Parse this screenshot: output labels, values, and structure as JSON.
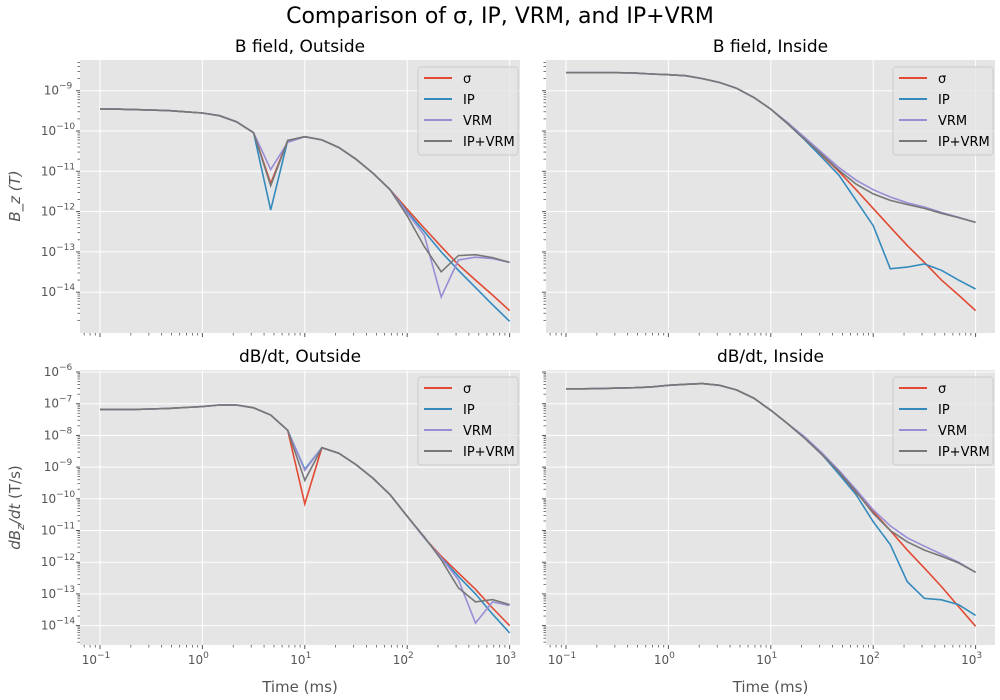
{
  "title": "Comparison of σ, IP, VRM, and IP+VRM",
  "chart_data": [
    {
      "type": "line",
      "title": "B field, Outside",
      "xlabel": "",
      "ylabel": "B_z (T)",
      "xscale": "log",
      "yscale": "log",
      "xlim": [
        0.064,
        1560
      ],
      "ylim": [
        1e-15,
        5.7e-09
      ],
      "grid": true,
      "legend": "top-right",
      "xticks": [
        0.1,
        1,
        10,
        100,
        1000
      ],
      "show_xticklabels": false,
      "yticks": [
        1e-09,
        1e-10,
        1e-11,
        1e-12,
        1e-13,
        1e-14
      ],
      "show_yticklabels": true,
      "x": [
        0.1,
        0.147,
        0.215,
        0.316,
        0.464,
        0.681,
        1,
        1.47,
        2.15,
        3.16,
        4.64,
        6.81,
        10,
        14.7,
        21.5,
        31.6,
        46.4,
        68.1,
        100,
        147,
        215,
        316,
        464,
        681,
        1000
      ],
      "series": [
        {
          "name": "σ",
          "color": "#E24A33",
          "values": [
            3.5e-10,
            3.5e-10,
            3.4e-10,
            3.3e-10,
            3.2e-10,
            3e-10,
            2.8e-10,
            2.4e-10,
            1.7e-10,
            9.1e-11,
            5e-12,
            5.8e-11,
            7.2e-11,
            6e-11,
            3.9e-11,
            2e-11,
            8.9e-12,
            3.5e-12,
            1.15e-12,
            3.9e-13,
            1.35e-13,
            4.8e-14,
            2e-14,
            8.5e-15,
            3.5e-15
          ]
        },
        {
          "name": "IP",
          "color": "#348ABD",
          "values": [
            3.5e-10,
            3.5e-10,
            3.4e-10,
            3.3e-10,
            3.2e-10,
            3e-10,
            2.8e-10,
            2.4e-10,
            1.7e-10,
            9.1e-11,
            1.1e-12,
            5.8e-11,
            7.2e-11,
            6e-11,
            3.9e-11,
            2e-11,
            8.9e-12,
            3.5e-12,
            1e-12,
            3.2e-13,
            1e-13,
            3.5e-14,
            1.3e-14,
            4.9e-15,
            1.9e-15
          ]
        },
        {
          "name": "VRM",
          "color": "#988ED5",
          "values": [
            3.5e-10,
            3.5e-10,
            3.4e-10,
            3.3e-10,
            3.2e-10,
            3e-10,
            2.8e-10,
            2.4e-10,
            1.7e-10,
            9.1e-11,
            1.1e-11,
            5.2e-11,
            7.2e-11,
            6e-11,
            3.9e-11,
            2e-11,
            8.9e-12,
            3.5e-12,
            9.3e-13,
            2.6e-13,
            7.6e-15,
            6.3e-14,
            7.4e-14,
            6.8e-14,
            5.5e-14
          ]
        },
        {
          "name": "IP+VRM",
          "color": "#777777",
          "values": [
            3.5e-10,
            3.5e-10,
            3.4e-10,
            3.3e-10,
            3.2e-10,
            3e-10,
            2.8e-10,
            2.4e-10,
            1.7e-10,
            9.1e-11,
            4.4e-12,
            5.8e-11,
            7.2e-11,
            6e-11,
            3.9e-11,
            2e-11,
            8.9e-12,
            3.5e-12,
            7.8e-13,
            1.35e-13,
            3.2e-14,
            8.1e-14,
            8.5e-14,
            7.2e-14,
            5.5e-14
          ]
        }
      ]
    },
    {
      "type": "line",
      "title": "B field, Inside",
      "xlabel": "",
      "ylabel": "",
      "xscale": "log",
      "yscale": "log",
      "xlim": [
        0.064,
        1560
      ],
      "ylim": [
        1e-15,
        5.7e-09
      ],
      "grid": true,
      "legend": "top-right",
      "xticks": [
        0.1,
        1,
        10,
        100,
        1000
      ],
      "show_xticklabels": false,
      "yticks": [
        1e-09,
        1e-10,
        1e-11,
        1e-12,
        1e-13,
        1e-14
      ],
      "show_yticklabels": false,
      "x": [
        0.1,
        0.147,
        0.215,
        0.316,
        0.464,
        0.681,
        1,
        1.47,
        2.15,
        3.16,
        4.64,
        6.81,
        10,
        14.7,
        21.5,
        31.6,
        46.4,
        68.1,
        100,
        147,
        215,
        316,
        464,
        681,
        1000
      ],
      "series": [
        {
          "name": "σ",
          "color": "#E24A33",
          "values": [
            2.8e-09,
            2.8e-09,
            2.8e-09,
            2.8e-09,
            2.75e-09,
            2.6e-09,
            2.5e-09,
            2.35e-09,
            2e-09,
            1.6e-09,
            1.15e-09,
            6.8e-10,
            3.5e-10,
            1.5e-10,
            6.2e-11,
            2.5e-11,
            9.8e-12,
            3.5e-12,
            1.2e-12,
            4.1e-13,
            1.45e-13,
            5.5e-14,
            2e-14,
            8.5e-15,
            3.5e-15
          ]
        },
        {
          "name": "IP",
          "color": "#348ABD",
          "values": [
            2.8e-09,
            2.8e-09,
            2.8e-09,
            2.8e-09,
            2.75e-09,
            2.6e-09,
            2.5e-09,
            2.35e-09,
            2e-09,
            1.6e-09,
            1.15e-09,
            6.8e-10,
            3.5e-10,
            1.5e-10,
            6e-11,
            2.2e-11,
            7.9e-12,
            1.9e-12,
            4.5e-13,
            3.8e-14,
            4.2e-14,
            5e-14,
            3.5e-14,
            2e-14,
            1.2e-14
          ]
        },
        {
          "name": "VRM",
          "color": "#988ED5",
          "values": [
            2.8e-09,
            2.8e-09,
            2.8e-09,
            2.8e-09,
            2.75e-09,
            2.6e-09,
            2.5e-09,
            2.35e-09,
            2e-09,
            1.6e-09,
            1.15e-09,
            6.8e-10,
            3.5e-10,
            1.6e-10,
            6.9e-11,
            2.9e-11,
            1.23e-11,
            6e-12,
            3.5e-12,
            2.3e-12,
            1.65e-12,
            1.3e-12,
            9.5e-13,
            7.2e-13,
            5.4e-13
          ]
        },
        {
          "name": "IP+VRM",
          "color": "#777777",
          "values": [
            2.8e-09,
            2.8e-09,
            2.8e-09,
            2.8e-09,
            2.75e-09,
            2.6e-09,
            2.5e-09,
            2.35e-09,
            2e-09,
            1.6e-09,
            1.15e-09,
            6.8e-10,
            3.5e-10,
            1.5e-10,
            6.2e-11,
            2.6e-11,
            1.05e-11,
            4.8e-12,
            2.75e-12,
            1.9e-12,
            1.5e-12,
            1.2e-12,
            9.1e-13,
            7.1e-13,
            5.4e-13
          ]
        }
      ]
    },
    {
      "type": "line",
      "title": "dB/dt, Outside",
      "xlabel": "Time (ms)",
      "ylabel": "dB_z/dt (T/s)",
      "xscale": "log",
      "yscale": "log",
      "xlim": [
        0.064,
        1560
      ],
      "ylim": [
        2.3e-15,
        1.15e-06
      ],
      "grid": true,
      "legend": "top-right",
      "xticks": [
        0.1,
        1,
        10,
        100,
        1000
      ],
      "show_xticklabels": true,
      "yticks": [
        1e-06,
        1e-07,
        1e-08,
        1e-09,
        1e-10,
        1e-11,
        1e-12,
        1e-13,
        1e-14
      ],
      "show_yticklabels": true,
      "x": [
        0.1,
        0.147,
        0.215,
        0.316,
        0.464,
        0.681,
        1,
        1.47,
        2.15,
        3.16,
        4.64,
        6.81,
        10,
        14.7,
        21.5,
        31.6,
        46.4,
        68.1,
        100,
        147,
        215,
        316,
        464,
        681,
        1000
      ],
      "series": [
        {
          "name": "σ",
          "color": "#E24A33",
          "values": [
            6.6e-08,
            6.6e-08,
            6.6e-08,
            6.8e-08,
            7.1e-08,
            7.6e-08,
            8.1e-08,
            9.1e-08,
            9.1e-08,
            7.4e-08,
            4.4e-08,
            1.45e-08,
            6.9e-11,
            4.1e-09,
            2.75e-09,
            1.2e-09,
            4.4e-10,
            1.35e-10,
            2.8e-11,
            5.9e-12,
            1.55e-12,
            4.6e-13,
            1.4e-13,
            3.6e-14,
            1e-14
          ]
        },
        {
          "name": "IP",
          "color": "#348ABD",
          "values": [
            6.6e-08,
            6.6e-08,
            6.6e-08,
            6.8e-08,
            7.1e-08,
            7.6e-08,
            8.1e-08,
            9.1e-08,
            9.1e-08,
            7.4e-08,
            4.4e-08,
            1.45e-08,
            8.5e-10,
            4.1e-09,
            2.75e-09,
            1.2e-09,
            4.4e-10,
            1.35e-10,
            2.8e-11,
            5.9e-12,
            1.4e-12,
            3.6e-13,
            1e-13,
            2.3e-14,
            5.9e-15
          ]
        },
        {
          "name": "VRM",
          "color": "#988ED5",
          "values": [
            6.6e-08,
            6.6e-08,
            6.6e-08,
            6.8e-08,
            7.1e-08,
            7.6e-08,
            8.1e-08,
            9.1e-08,
            9.1e-08,
            7.4e-08,
            4.4e-08,
            1.45e-08,
            7.9e-10,
            4.1e-09,
            2.75e-09,
            1.2e-09,
            4.4e-10,
            1.35e-10,
            2.8e-11,
            5.9e-12,
            1.4e-12,
            2.8e-13,
            1.2e-14,
            5.6e-14,
            4.3e-14
          ]
        },
        {
          "name": "IP+VRM",
          "color": "#777777",
          "values": [
            6.6e-08,
            6.6e-08,
            6.6e-08,
            6.8e-08,
            7.1e-08,
            7.6e-08,
            8.1e-08,
            9.1e-08,
            9.1e-08,
            7.4e-08,
            4.4e-08,
            1.45e-08,
            3.8e-10,
            4.1e-09,
            2.75e-09,
            1.2e-09,
            4.4e-10,
            1.35e-10,
            2.8e-11,
            6.3e-12,
            1.2e-12,
            1.55e-13,
            5.6e-14,
            6.6e-14,
            4.6e-14
          ]
        }
      ]
    },
    {
      "type": "line",
      "title": "dB/dt, Inside",
      "xlabel": "Time (ms)",
      "ylabel": "",
      "xscale": "log",
      "yscale": "log",
      "xlim": [
        0.064,
        1560
      ],
      "ylim": [
        2.3e-15,
        1.15e-06
      ],
      "grid": true,
      "legend": "top-right",
      "xticks": [
        0.1,
        1,
        10,
        100,
        1000
      ],
      "show_xticklabels": true,
      "yticks": [
        1e-06,
        1e-07,
        1e-08,
        1e-09,
        1e-10,
        1e-11,
        1e-12,
        1e-13,
        1e-14
      ],
      "show_yticklabels": false,
      "x": [
        0.1,
        0.147,
        0.215,
        0.316,
        0.464,
        0.681,
        1,
        1.47,
        2.15,
        3.16,
        4.64,
        6.81,
        10,
        14.7,
        21.5,
        31.6,
        46.4,
        68.1,
        100,
        147,
        215,
        316,
        464,
        681,
        1000
      ],
      "series": [
        {
          "name": "σ",
          "color": "#E24A33",
          "values": [
            2.95e-07,
            2.95e-07,
            3e-07,
            3.1e-07,
            3.2e-07,
            3.4e-07,
            3.8e-07,
            4.1e-07,
            4.3e-07,
            3.8e-07,
            2.7e-07,
            1.5e-07,
            6.2e-08,
            2.3e-08,
            8.1e-09,
            2.5e-09,
            6.6e-10,
            1.6e-10,
            4e-11,
            1e-11,
            2.45e-12,
            6.5e-13,
            1.7e-13,
            4e-14,
            9.5e-15
          ]
        },
        {
          "name": "IP",
          "color": "#348ABD",
          "values": [
            2.95e-07,
            2.95e-07,
            3e-07,
            3.1e-07,
            3.2e-07,
            3.4e-07,
            3.8e-07,
            4.1e-07,
            4.3e-07,
            3.8e-07,
            2.7e-07,
            1.5e-07,
            6.2e-08,
            2.3e-08,
            8.1e-09,
            2.5e-09,
            5.9e-10,
            1.35e-10,
            1.9e-11,
            3.6e-12,
            2.45e-13,
            7.2e-14,
            6.5e-14,
            4.6e-14,
            2.1e-14
          ]
        },
        {
          "name": "VRM",
          "color": "#988ED5",
          "values": [
            2.95e-07,
            2.95e-07,
            3e-07,
            3.1e-07,
            3.2e-07,
            3.4e-07,
            3.8e-07,
            4.1e-07,
            4.3e-07,
            3.8e-07,
            2.7e-07,
            1.5e-07,
            6.2e-08,
            2.3e-08,
            9e-09,
            2.8e-09,
            7.8e-10,
            1.95e-10,
            4.5e-11,
            1.4e-11,
            5.9e-12,
            3.2e-12,
            1.8e-12,
            1e-12,
            4.8e-13
          ]
        },
        {
          "name": "IP+VRM",
          "color": "#777777",
          "values": [
            2.95e-07,
            2.95e-07,
            3e-07,
            3.1e-07,
            3.2e-07,
            3.4e-07,
            3.8e-07,
            4.1e-07,
            4.3e-07,
            3.8e-07,
            2.7e-07,
            1.5e-07,
            6.2e-08,
            2.3e-08,
            8.1e-09,
            2.5e-09,
            7e-10,
            1.7e-10,
            3.5e-11,
            1e-11,
            4.4e-12,
            2.4e-12,
            1.55e-12,
            9.5e-13,
            4.8e-13
          ]
        }
      ]
    }
  ]
}
